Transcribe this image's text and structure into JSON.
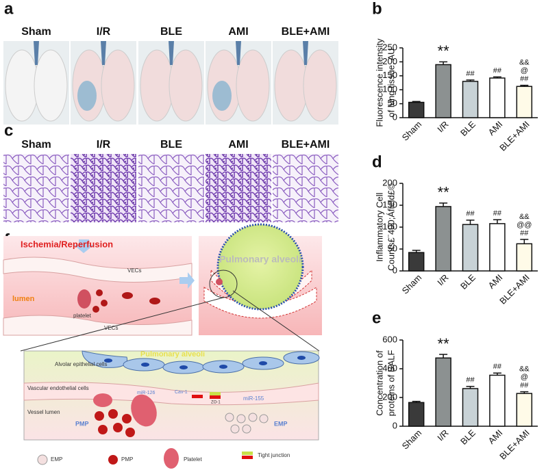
{
  "panel_labels": [
    "a",
    "b",
    "c",
    "d",
    "e",
    "f"
  ],
  "photos": {
    "labels": [
      "Sham",
      "I/R",
      "BLE",
      "AMI",
      "BLE+AMI"
    ]
  },
  "histology": {
    "labels": [
      "Sham",
      "I/R",
      "BLE",
      "AMI",
      "BLE+AMI"
    ]
  },
  "diagram": {
    "top_left": {
      "title": "Ischemia/Reperfusion",
      "vecs_top": "VECs",
      "lumen": "lumen",
      "platelet": "platelet",
      "vecs_bottom": "VECs"
    },
    "top_right": {
      "alveoli": "Pulmonary alveoli"
    },
    "detail": {
      "alveoli": "Pulmonary alveoli",
      "epithelial": "Alvolar epithelial cells",
      "endothelial": "Vascular endothelial cells",
      "vessel": "Vessel lumen",
      "pmp": "PMP",
      "mir126": "miR-126",
      "cav1": "Cav-1",
      "zo1": "ZO-1",
      "mir155": "miR-155",
      "emp": "EMP"
    },
    "legend": [
      "EMP",
      "PMP",
      "Platelet",
      "Tight junction"
    ]
  },
  "chart_data": [
    {
      "type": "bar",
      "ylabel": [
        "Fluorescence intensity",
        "of lung tissue, AU"
      ],
      "categories": [
        "Sham",
        "I/R",
        "BLE",
        "AMI",
        "BLE+AMI"
      ],
      "values": [
        55,
        190,
        130,
        142,
        112
      ],
      "errors": [
        3,
        10,
        5,
        4,
        4
      ],
      "colors": [
        "#3a3a3a",
        "#8c9191",
        "#c8d2d6",
        "#ffffff",
        "#fffbe8"
      ],
      "annotations": [
        [],
        [
          "**"
        ],
        [
          "##"
        ],
        [
          "##"
        ],
        [
          "&&",
          "@",
          "##"
        ]
      ],
      "ylim": [
        0,
        250
      ],
      "yticks": [
        0,
        50,
        100,
        150,
        200,
        250
      ]
    },
    {
      "type": "bar",
      "ylabel": [
        "Inflammatory Cell",
        "Counts£¨400;Áfield£©"
      ],
      "categories": [
        "Sham",
        "I/R",
        "BLE",
        "AMI",
        "BLE+AMI"
      ],
      "values": [
        42,
        147,
        106,
        108,
        62
      ],
      "errors": [
        5,
        8,
        10,
        9,
        10
      ],
      "colors": [
        "#3a3a3a",
        "#8c9191",
        "#c8d2d6",
        "#ffffff",
        "#fffbe8"
      ],
      "annotations": [
        [],
        [
          "**"
        ],
        [
          "##"
        ],
        [
          "##"
        ],
        [
          "&&",
          "@@",
          "##"
        ]
      ],
      "ylim": [
        0,
        200
      ],
      "yticks": [
        0,
        50,
        100,
        150,
        200
      ]
    },
    {
      "type": "bar",
      "ylabel": [
        "Concentration of",
        "proteins of BALF"
      ],
      "categories": [
        "Sham",
        "I/R",
        "BLE",
        "AMI",
        "BLE+AMI"
      ],
      "values": [
        165,
        475,
        262,
        355,
        228
      ],
      "errors": [
        8,
        25,
        15,
        15,
        12
      ],
      "colors": [
        "#3a3a3a",
        "#8c9191",
        "#c8d2d6",
        "#ffffff",
        "#fffbe8"
      ],
      "annotations": [
        [],
        [
          "**"
        ],
        [
          "##"
        ],
        [
          "##"
        ],
        [
          "&&",
          "@",
          "##"
        ]
      ],
      "ylim": [
        0,
        600
      ],
      "yticks": [
        0,
        200,
        400,
        600
      ]
    }
  ]
}
